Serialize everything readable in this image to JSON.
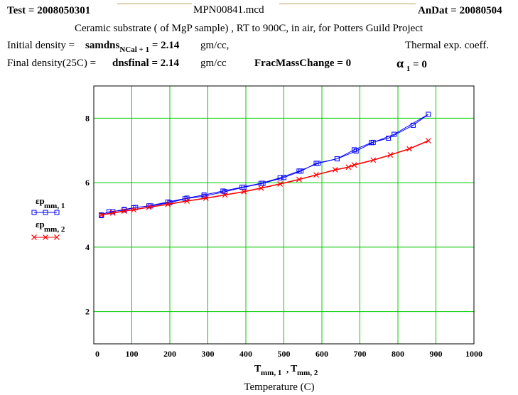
{
  "header": {
    "test_label": "Test",
    "test_value": "2008050301",
    "file_name": "MPN00841.mcd",
    "andat_label": "AnDat",
    "andat_value": "20080504",
    "description": "Ceramic substrate ( of MgP sample) , RT to 900C, in  air, for Potters Guild Project"
  },
  "params": {
    "initial_label": "Initial density =",
    "initial_var": "samdns",
    "initial_var_sub": "NCal + 1",
    "initial_value": "2.14",
    "initial_unit": "gm/cc,",
    "final_label": "Final density(25C) =",
    "final_var": "dnsfinal",
    "final_value": "2.14",
    "final_unit": "gm/cc",
    "frac_label": "FracMassChange",
    "frac_value": "0",
    "thermal_label": "Thermal exp. coeff.",
    "alpha_symbol": "α",
    "alpha_sub": "1",
    "alpha_value": "0"
  },
  "chart_data": {
    "type": "line",
    "xlim": [
      0,
      1000
    ],
    "ylim": [
      1,
      9
    ],
    "x_ticks": [
      0,
      100,
      200,
      300,
      400,
      500,
      600,
      700,
      800,
      900,
      1000
    ],
    "y_ticks": [
      2,
      4,
      6,
      8
    ],
    "grid": true,
    "grid_color": "#00cc00",
    "xlabel_var": "T",
    "xlabel_sub1": "mm, 1",
    "xlabel_sub2": "mm, 2",
    "xlabel_caption": "Temperature (C)",
    "series": [
      {
        "name": "εp",
        "name_sub": "mm, 1",
        "color": "#0000ff",
        "marker": "square",
        "x": [
          20,
          40,
          80,
          110,
          150,
          200,
          240,
          290,
          345,
          395,
          445,
          500,
          545,
          585,
          640,
          685,
          730,
          775,
          840,
          880,
          790,
          735,
          690,
          640,
          590,
          540,
          490,
          440,
          390,
          340,
          290,
          245,
          195,
          145,
          105,
          80,
          50,
          20
        ],
        "y": [
          5.0,
          5.1,
          5.15,
          5.23,
          5.28,
          5.38,
          5.5,
          5.58,
          5.72,
          5.86,
          5.98,
          6.16,
          6.36,
          6.6,
          6.74,
          7.02,
          7.24,
          7.38,
          7.78,
          8.12,
          7.5,
          7.25,
          6.98,
          6.74,
          6.6,
          6.36,
          6.15,
          5.98,
          5.86,
          5.74,
          5.62,
          5.52,
          5.4,
          5.28,
          5.22,
          5.17,
          5.1,
          4.98
        ]
      },
      {
        "name": "εp",
        "name_sub": "mm, 2",
        "color": "#ff0000",
        "marker": "x",
        "x": [
          20,
          50,
          80,
          105,
          145,
          195,
          245,
          295,
          345,
          395,
          440,
          490,
          540,
          585,
          635,
          670,
          685,
          735,
          780,
          830,
          880
        ],
        "y": [
          5.0,
          5.06,
          5.12,
          5.16,
          5.24,
          5.33,
          5.43,
          5.52,
          5.62,
          5.72,
          5.83,
          5.96,
          6.1,
          6.24,
          6.4,
          6.48,
          6.55,
          6.7,
          6.86,
          7.05,
          7.3
        ]
      }
    ]
  }
}
